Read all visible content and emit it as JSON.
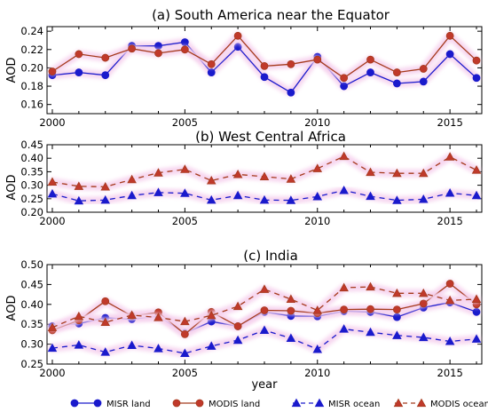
{
  "colors": {
    "misr": "#1a1acc",
    "modis": "#a53a1c",
    "modis_fill": "#c0392b",
    "glow": "#f6d2ee"
  },
  "xlabel": "year",
  "legend": {
    "placement": "bottom-center",
    "items": [
      {
        "label": "MISR land",
        "series": "misr_land"
      },
      {
        "label": "MODIS land",
        "series": "modis_land"
      },
      {
        "label": "MISR ocean",
        "series": "misr_ocean"
      },
      {
        "label": "MODIS ocean",
        "series": "modis_ocean"
      }
    ]
  },
  "chart_data": [
    {
      "type": "line",
      "title": "(a) South America near the Equator",
      "ylabel": "AOD",
      "xlim": [
        1999.8,
        2016.2
      ],
      "ylim": [
        0.15,
        0.245
      ],
      "yticks": [
        "0.16",
        "0.18",
        "0.20",
        "0.22",
        "0.24"
      ],
      "xticks": [
        "2000",
        "2005",
        "2010",
        "2015"
      ],
      "x": [
        2000,
        2001,
        2002,
        2003,
        2004,
        2005,
        2006,
        2007,
        2008,
        2009,
        2010,
        2011,
        2012,
        2013,
        2014,
        2015,
        2016
      ],
      "series": [
        {
          "key": "misr_land",
          "values": [
            0.192,
            0.195,
            0.192,
            0.224,
            0.224,
            0.228,
            0.195,
            0.223,
            0.19,
            0.173,
            0.212,
            0.18,
            0.195,
            0.183,
            0.185,
            0.215,
            0.189
          ]
        },
        {
          "key": "modis_land",
          "values": [
            0.196,
            0.215,
            0.211,
            0.221,
            0.216,
            0.22,
            0.204,
            0.235,
            0.202,
            0.204,
            0.209,
            0.189,
            0.209,
            0.195,
            0.199,
            0.235,
            0.208
          ]
        }
      ]
    },
    {
      "type": "line",
      "title": "(b) West Central Africa",
      "ylabel": "AOD",
      "xlim": [
        1999.8,
        2016.2
      ],
      "ylim": [
        0.2,
        0.45
      ],
      "yticks": [
        "0.20",
        "0.25",
        "0.30",
        "0.35",
        "0.40",
        "0.45"
      ],
      "xticks": [
        "2000",
        "2005",
        "2010",
        "2015"
      ],
      "x": [
        2000,
        2001,
        2002,
        2003,
        2004,
        2005,
        2006,
        2007,
        2008,
        2009,
        2010,
        2011,
        2012,
        2013,
        2014,
        2015,
        2016
      ],
      "series": [
        {
          "key": "misr_ocean",
          "values": [
            0.268,
            0.242,
            0.245,
            0.262,
            0.273,
            0.27,
            0.245,
            0.262,
            0.245,
            0.244,
            0.258,
            0.281,
            0.259,
            0.244,
            0.248,
            0.271,
            0.262
          ]
        },
        {
          "key": "modis_ocean",
          "values": [
            0.312,
            0.296,
            0.294,
            0.321,
            0.346,
            0.359,
            0.317,
            0.34,
            0.332,
            0.323,
            0.362,
            0.407,
            0.348,
            0.344,
            0.344,
            0.405,
            0.356
          ]
        }
      ]
    },
    {
      "type": "line",
      "title": "(c) India",
      "ylabel": "AOD",
      "xlim": [
        1999.8,
        2016.2
      ],
      "ylim": [
        0.25,
        0.5
      ],
      "yticks": [
        "0.25",
        "0.30",
        "0.35",
        "0.40",
        "0.45",
        "0.50"
      ],
      "xticks": [
        "2000",
        "2005",
        "2010",
        "2015"
      ],
      "x": [
        2000,
        2001,
        2002,
        2003,
        2004,
        2005,
        2006,
        2007,
        2008,
        2009,
        2010,
        2011,
        2012,
        2013,
        2014,
        2015,
        2016
      ],
      "series": [
        {
          "key": "misr_land",
          "values": [
            0.345,
            0.352,
            0.366,
            0.363,
            0.37,
            0.328,
            0.357,
            0.345,
            0.381,
            0.371,
            0.37,
            0.383,
            0.381,
            0.368,
            0.392,
            0.405,
            0.381
          ]
        },
        {
          "key": "modis_land",
          "values": [
            0.335,
            0.36,
            0.408,
            0.371,
            0.38,
            0.325,
            0.381,
            0.345,
            0.385,
            0.384,
            0.378,
            0.387,
            0.388,
            0.387,
            0.402,
            0.452,
            0.4
          ]
        },
        {
          "key": "misr_ocean",
          "values": [
            0.29,
            0.298,
            0.28,
            0.297,
            0.289,
            0.277,
            0.295,
            0.31,
            0.335,
            0.315,
            0.287,
            0.338,
            0.33,
            0.322,
            0.317,
            0.307,
            0.313
          ]
        },
        {
          "key": "modis_ocean",
          "values": [
            0.342,
            0.37,
            0.355,
            0.373,
            0.367,
            0.357,
            0.372,
            0.395,
            0.438,
            0.413,
            0.385,
            0.442,
            0.444,
            0.428,
            0.428,
            0.41,
            0.413
          ]
        }
      ]
    }
  ]
}
